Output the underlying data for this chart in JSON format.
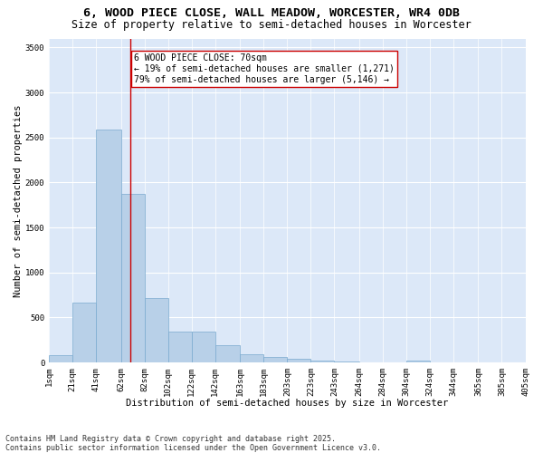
{
  "title": "6, WOOD PIECE CLOSE, WALL MEADOW, WORCESTER, WR4 0DB",
  "subtitle": "Size of property relative to semi-detached houses in Worcester",
  "xlabel": "Distribution of semi-detached houses by size in Worcester",
  "ylabel": "Number of semi-detached properties",
  "background_color": "#dce8f8",
  "bar_color": "#b8d0e8",
  "bar_edge_color": "#7aaacf",
  "property_size": 70,
  "property_label": "6 WOOD PIECE CLOSE: 70sqm",
  "pct_smaller": "19%",
  "count_smaller": 1271,
  "pct_larger": "79%",
  "count_larger": 5146,
  "annotation_line_color": "#cc0000",
  "annotation_box_edge_color": "#cc0000",
  "bins": [
    1,
    21,
    41,
    62,
    82,
    102,
    122,
    142,
    163,
    183,
    203,
    223,
    243,
    264,
    284,
    304,
    324,
    344,
    365,
    385,
    405
  ],
  "bin_labels": [
    "1sqm",
    "21sqm",
    "41sqm",
    "62sqm",
    "82sqm",
    "102sqm",
    "122sqm",
    "142sqm",
    "163sqm",
    "183sqm",
    "203sqm",
    "223sqm",
    "243sqm",
    "264sqm",
    "284sqm",
    "304sqm",
    "324sqm",
    "344sqm",
    "365sqm",
    "385sqm",
    "405sqm"
  ],
  "counts": [
    80,
    670,
    2590,
    1870,
    720,
    340,
    340,
    190,
    90,
    65,
    45,
    20,
    8,
    4,
    0,
    25,
    0,
    0,
    0,
    0
  ],
  "ylim": [
    0,
    3600
  ],
  "yticks": [
    0,
    500,
    1000,
    1500,
    2000,
    2500,
    3000,
    3500
  ],
  "footnote": "Contains HM Land Registry data © Crown copyright and database right 2025.\nContains public sector information licensed under the Open Government Licence v3.0.",
  "title_fontsize": 9.5,
  "subtitle_fontsize": 8.5,
  "axis_label_fontsize": 7.5,
  "tick_fontsize": 6.5,
  "annotation_fontsize": 7,
  "footnote_fontsize": 6
}
